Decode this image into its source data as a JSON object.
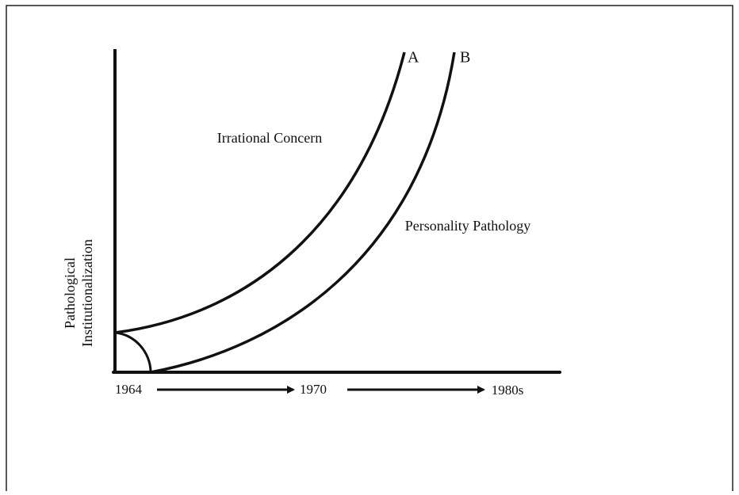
{
  "diagram": {
    "y_axis_label": [
      "Pathological",
      "Institutionalization"
    ],
    "x_labels": [
      "1964",
      "1970",
      "1980s"
    ],
    "curves": [
      {
        "label": "A",
        "region_label": "Irrational Concern"
      },
      {
        "label": "B",
        "region_label": "Personality Pathology"
      }
    ]
  }
}
